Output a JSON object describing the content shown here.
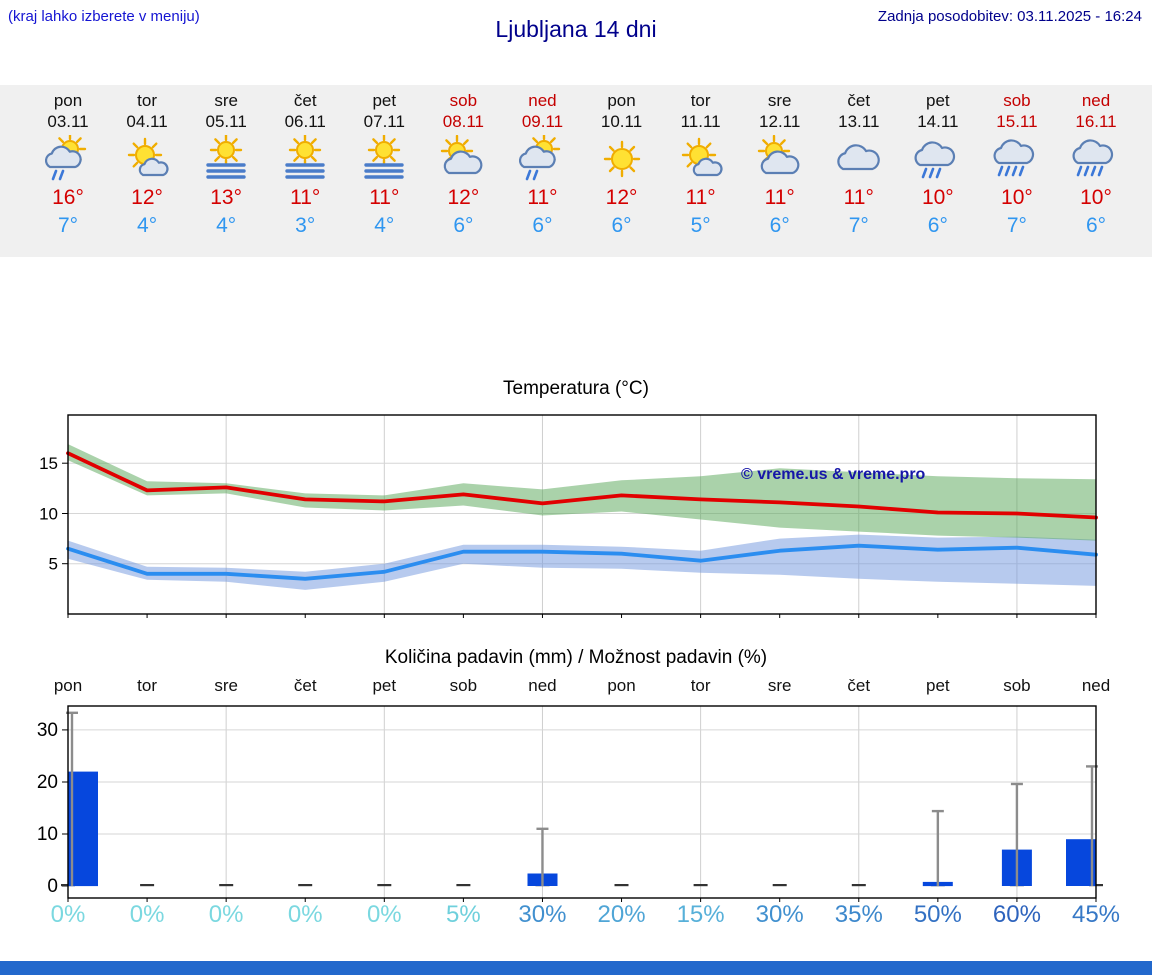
{
  "header": {
    "hint": "(kraj lahko izberete v meniju)",
    "title": "Ljubljana 14 dni",
    "updated": "Zadnja posodobitev: 03.11.2025 - 16:24"
  },
  "colors": {
    "hint": "#1414d2",
    "navy": "#00008b",
    "weekend": "#c40000",
    "tmax": "#d40000",
    "tmin": "#2f96f0",
    "footer": "#2268cc"
  },
  "days": [
    {
      "name": "pon",
      "date": "03.11",
      "weekend": false,
      "icon": "sun-cloud-rain",
      "tmax": "16°",
      "tmin": "7°"
    },
    {
      "name": "tor",
      "date": "04.11",
      "weekend": false,
      "icon": "sun-small-cloud",
      "tmax": "12°",
      "tmin": "4°"
    },
    {
      "name": "sre",
      "date": "05.11",
      "weekend": false,
      "icon": "sun-fog",
      "tmax": "13°",
      "tmin": "4°"
    },
    {
      "name": "čet",
      "date": "06.11",
      "weekend": false,
      "icon": "sun-fog",
      "tmax": "11°",
      "tmin": "3°"
    },
    {
      "name": "pet",
      "date": "07.11",
      "weekend": false,
      "icon": "sun-fog",
      "tmax": "11°",
      "tmin": "4°"
    },
    {
      "name": "sob",
      "date": "08.11",
      "weekend": true,
      "icon": "sun-cloud",
      "tmax": "12°",
      "tmin": "6°"
    },
    {
      "name": "ned",
      "date": "09.11",
      "weekend": true,
      "icon": "sun-cloud-rain",
      "tmax": "11°",
      "tmin": "6°"
    },
    {
      "name": "pon",
      "date": "10.11",
      "weekend": false,
      "icon": "sun",
      "tmax": "12°",
      "tmin": "6°"
    },
    {
      "name": "tor",
      "date": "11.11",
      "weekend": false,
      "icon": "sun-small-cloud",
      "tmax": "11°",
      "tmin": "5°"
    },
    {
      "name": "sre",
      "date": "12.11",
      "weekend": false,
      "icon": "sun-cloud",
      "tmax": "11°",
      "tmin": "6°"
    },
    {
      "name": "čet",
      "date": "13.11",
      "weekend": false,
      "icon": "cloud",
      "tmax": "11°",
      "tmin": "7°"
    },
    {
      "name": "pet",
      "date": "14.11",
      "weekend": false,
      "icon": "cloud-rain",
      "tmax": "10°",
      "tmin": "6°"
    },
    {
      "name": "sob",
      "date": "15.11",
      "weekend": true,
      "icon": "cloud-heavy-rain",
      "tmax": "10°",
      "tmin": "7°"
    },
    {
      "name": "ned",
      "date": "16.11",
      "weekend": true,
      "icon": "cloud-heavy-rain",
      "tmax": "10°",
      "tmin": "6°"
    }
  ],
  "chart_data": [
    {
      "type": "line",
      "title": "Temperatura (°C)",
      "x_categories": [
        "pon 03.11",
        "tor 04.11",
        "sre 05.11",
        "čet 06.11",
        "pet 07.11",
        "sob 08.11",
        "ned 09.11",
        "pon 10.11",
        "tor 11.11",
        "sre 12.11",
        "čet 13.11",
        "pet 14.11",
        "sob 15.11",
        "ned 16.11"
      ],
      "ylim": [
        0,
        19.8
      ],
      "yticks": [
        5,
        10,
        15
      ],
      "grid": true,
      "legend": "none",
      "watermark": "© vreme.us & vreme.pro",
      "watermark_color": "#1616a8",
      "series": [
        {
          "name": "min temperatura",
          "color": "#2b8df0",
          "values": [
            6.5,
            4.0,
            4.0,
            3.5,
            4.2,
            6.2,
            6.2,
            6.0,
            5.3,
            6.3,
            6.8,
            6.4,
            6.6,
            5.9
          ]
        },
        {
          "name": "maks temperatura",
          "color": "#e10000",
          "values": [
            16.0,
            12.3,
            12.6,
            11.4,
            11.2,
            11.9,
            11.0,
            11.8,
            11.4,
            11.1,
            10.7,
            10.1,
            10.0,
            9.6
          ]
        }
      ],
      "bands": [
        {
          "name": "razpon min temperature",
          "color": "#6f95dd",
          "upper": [
            7.3,
            4.7,
            4.6,
            4.2,
            5.0,
            6.9,
            6.9,
            6.7,
            6.3,
            7.5,
            7.9,
            7.6,
            7.7,
            7.4
          ],
          "lower": [
            5.5,
            3.4,
            3.2,
            2.4,
            3.2,
            5.0,
            4.6,
            4.5,
            4.1,
            3.9,
            3.5,
            3.2,
            3.0,
            2.8
          ]
        },
        {
          "name": "razpon maks temperature",
          "color": "#56a556",
          "upper": [
            16.9,
            13.2,
            13.0,
            12.0,
            11.8,
            13.0,
            12.4,
            13.3,
            13.7,
            14.5,
            14.1,
            13.7,
            13.5,
            13.4
          ],
          "lower": [
            15.3,
            11.8,
            12.0,
            10.6,
            10.3,
            10.8,
            9.8,
            10.2,
            9.4,
            8.6,
            8.2,
            7.8,
            7.6,
            7.3
          ]
        }
      ]
    },
    {
      "type": "bar",
      "title": "Količina padavin (mm) / Možnost padavin (%)",
      "categories": [
        "pon",
        "tor",
        "sre",
        "čet",
        "pet",
        "sob",
        "ned",
        "pon",
        "tor",
        "sre",
        "čet",
        "pet",
        "sob",
        "ned"
      ],
      "values_mm": [
        22,
        0,
        0,
        0,
        0,
        0,
        2.4,
        0,
        0,
        0,
        0,
        0.8,
        7,
        9
      ],
      "whisker_max_mm": [
        33.3,
        0,
        0,
        0,
        0,
        0,
        11,
        0,
        0,
        0,
        0,
        14.4,
        19.6,
        23
      ],
      "probability": [
        "0%",
        "0%",
        "0%",
        "0%",
        "0%",
        "5%",
        "30%",
        "20%",
        "15%",
        "30%",
        "35%",
        "50%",
        "60%",
        "45%"
      ],
      "probability_colors": [
        "#7bd8e0",
        "#7bd8e0",
        "#7bd8e0",
        "#7bd8e0",
        "#7bd8e0",
        "#6fd0dc",
        "#4190cf",
        "#4fa5d6",
        "#57b0d9",
        "#4190cf",
        "#3d88cc",
        "#3371c3",
        "#2d63bd",
        "#3678c6"
      ],
      "ylim": [
        -2.3,
        34.6
      ],
      "yticks": [
        0,
        10,
        20,
        30
      ],
      "bar_color": "#0647dd",
      "whisker_color": "#8c8c8c"
    }
  ],
  "footer": {
    "color": "#2268cc"
  }
}
